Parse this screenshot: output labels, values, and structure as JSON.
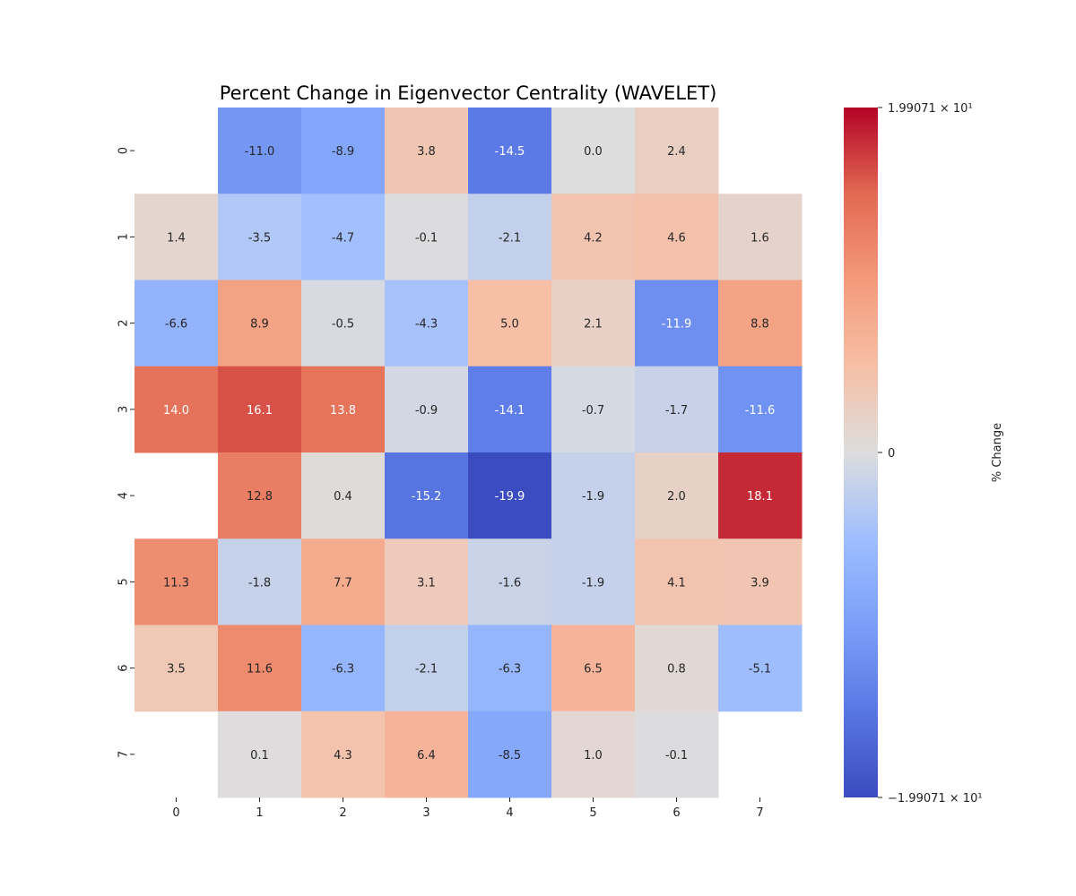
{
  "chart_data": {
    "type": "heatmap",
    "title": "Percent Change in Eigenvector Centrality (WAVELET)",
    "xlabel": "",
    "ylabel": "",
    "x_tick_labels": [
      "0",
      "1",
      "2",
      "3",
      "4",
      "5",
      "6",
      "7"
    ],
    "y_tick_labels": [
      "0",
      "1",
      "2",
      "3",
      "4",
      "5",
      "6",
      "7"
    ],
    "values": [
      [
        null,
        -11.0,
        -8.9,
        3.8,
        -14.5,
        -0.0,
        2.4,
        null
      ],
      [
        1.4,
        -3.5,
        -4.7,
        -0.1,
        -2.1,
        4.2,
        4.6,
        1.6
      ],
      [
        -6.6,
        8.9,
        -0.5,
        -4.3,
        5.0,
        2.1,
        -11.9,
        8.8
      ],
      [
        14.0,
        16.1,
        13.8,
        -0.9,
        -14.1,
        -0.7,
        -1.7,
        -11.6
      ],
      [
        null,
        12.8,
        0.4,
        -15.2,
        -19.9,
        -1.9,
        2.0,
        18.1
      ],
      [
        11.3,
        -1.8,
        7.7,
        3.1,
        -1.6,
        -1.9,
        4.1,
        3.9
      ],
      [
        3.5,
        11.6,
        -6.3,
        -2.1,
        -6.3,
        6.5,
        0.8,
        -5.1
      ],
      [
        null,
        0.1,
        4.3,
        6.4,
        -8.5,
        1.0,
        -0.1,
        null
      ]
    ],
    "colormap": "coolwarm",
    "vmin": -19.9071,
    "vmax": 19.9071,
    "colorbar": {
      "label": "% Change",
      "tick_labels": [
        "−1.99071 × 10¹",
        "0",
        "1.99071 × 10¹"
      ],
      "tick_values": [
        -19.9071,
        0,
        19.9071
      ]
    }
  }
}
